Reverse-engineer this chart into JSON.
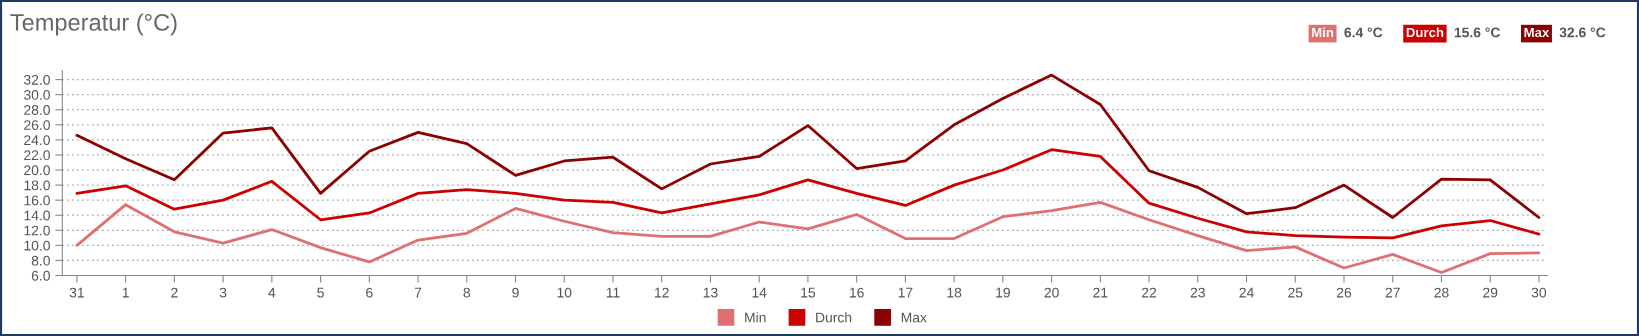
{
  "chart_data": {
    "type": "line",
    "title": "Temperatur (°C)",
    "categories": [
      "31",
      "1",
      "2",
      "3",
      "4",
      "5",
      "6",
      "7",
      "8",
      "9",
      "10",
      "11",
      "12",
      "13",
      "14",
      "15",
      "16",
      "17",
      "18",
      "19",
      "20",
      "21",
      "22",
      "23",
      "24",
      "25",
      "26",
      "27",
      "28",
      "29",
      "30"
    ],
    "series": [
      {
        "name": "Min",
        "color": "#e07070",
        "values": [
          10.0,
          15.4,
          11.8,
          10.3,
          12.1,
          9.7,
          7.8,
          10.7,
          11.6,
          14.9,
          13.2,
          11.7,
          11.2,
          11.2,
          13.1,
          12.2,
          14.1,
          10.9,
          10.9,
          13.8,
          14.6,
          15.7,
          13.4,
          11.3,
          9.3,
          9.8,
          7.0,
          8.8,
          6.4,
          8.9,
          9.0
        ]
      },
      {
        "name": "Durch",
        "color": "#cc0000",
        "values": [
          16.9,
          17.9,
          14.8,
          16.0,
          18.5,
          13.4,
          14.3,
          16.9,
          17.4,
          16.9,
          16.0,
          15.7,
          14.3,
          15.5,
          16.7,
          18.7,
          16.9,
          15.3,
          18.0,
          20.0,
          22.7,
          21.8,
          15.6,
          13.6,
          11.8,
          11.3,
          11.1,
          11.0,
          12.6,
          13.3,
          11.5
        ]
      },
      {
        "name": "Max",
        "color": "#8b0000",
        "values": [
          24.6,
          21.5,
          18.7,
          24.9,
          25.6,
          16.9,
          22.5,
          25.0,
          23.5,
          19.3,
          21.2,
          21.7,
          17.5,
          20.8,
          21.8,
          25.9,
          20.2,
          21.2,
          26.0,
          29.5,
          32.6,
          28.7,
          19.9,
          17.7,
          14.2,
          15.0,
          18.0,
          13.7,
          18.8,
          18.7,
          13.7
        ]
      }
    ],
    "annotations": [
      "6.4 °C",
      "15.6 °C",
      "32.6 °C"
    ],
    "ylim": [
      6,
      33.2
    ],
    "yticks": [
      {
        "value": 6,
        "label": "6.0"
      },
      {
        "value": 8,
        "label": "8.0"
      },
      {
        "value": 10,
        "label": "10.0"
      },
      {
        "value": 12,
        "label": "12.0"
      },
      {
        "value": 14,
        "label": "14.0"
      },
      {
        "value": 16,
        "label": "16.0"
      },
      {
        "value": 18,
        "label": "18.0"
      },
      {
        "value": 20,
        "label": "20.0"
      },
      {
        "value": 22,
        "label": "22.0"
      },
      {
        "value": 24,
        "label": "24.0"
      },
      {
        "value": 26,
        "label": "26.0"
      },
      {
        "value": 28,
        "label": "28.0"
      },
      {
        "value": 30,
        "label": "30.0"
      },
      {
        "value": 32,
        "label": "32.0"
      }
    ],
    "grid": "y",
    "legend": "bottom",
    "marker": "none",
    "line_style": "solid"
  }
}
